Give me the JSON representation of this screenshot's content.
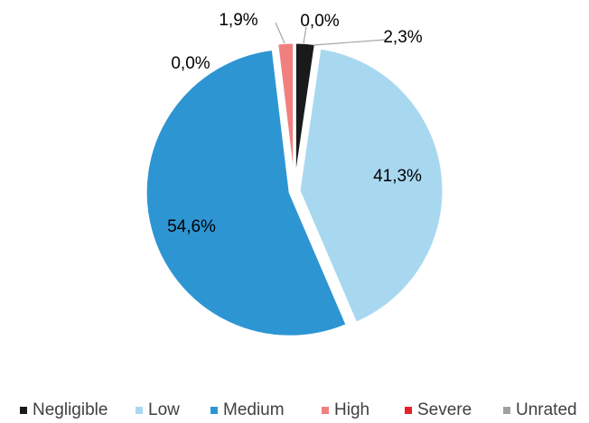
{
  "chart_data": {
    "type": "pie",
    "categories": [
      "Negligible",
      "Low",
      "Medium",
      "High",
      "Severe",
      "Unrated"
    ],
    "values": [
      2.3,
      41.3,
      54.6,
      1.9,
      0.0,
      0.0
    ],
    "value_labels": [
      "2,3%",
      "41,3%",
      "54,6%",
      "1,9%",
      "0,0%",
      "0,0%"
    ],
    "colors": [
      "#1a1a1a",
      "#a8d8f0",
      "#2e95d3",
      "#f08080",
      "#e8202a",
      "#a0a0a0"
    ],
    "start_angle_deg": 0,
    "direction": "clockwise",
    "exploded": true,
    "legend_position": "bottom",
    "title": ""
  }
}
